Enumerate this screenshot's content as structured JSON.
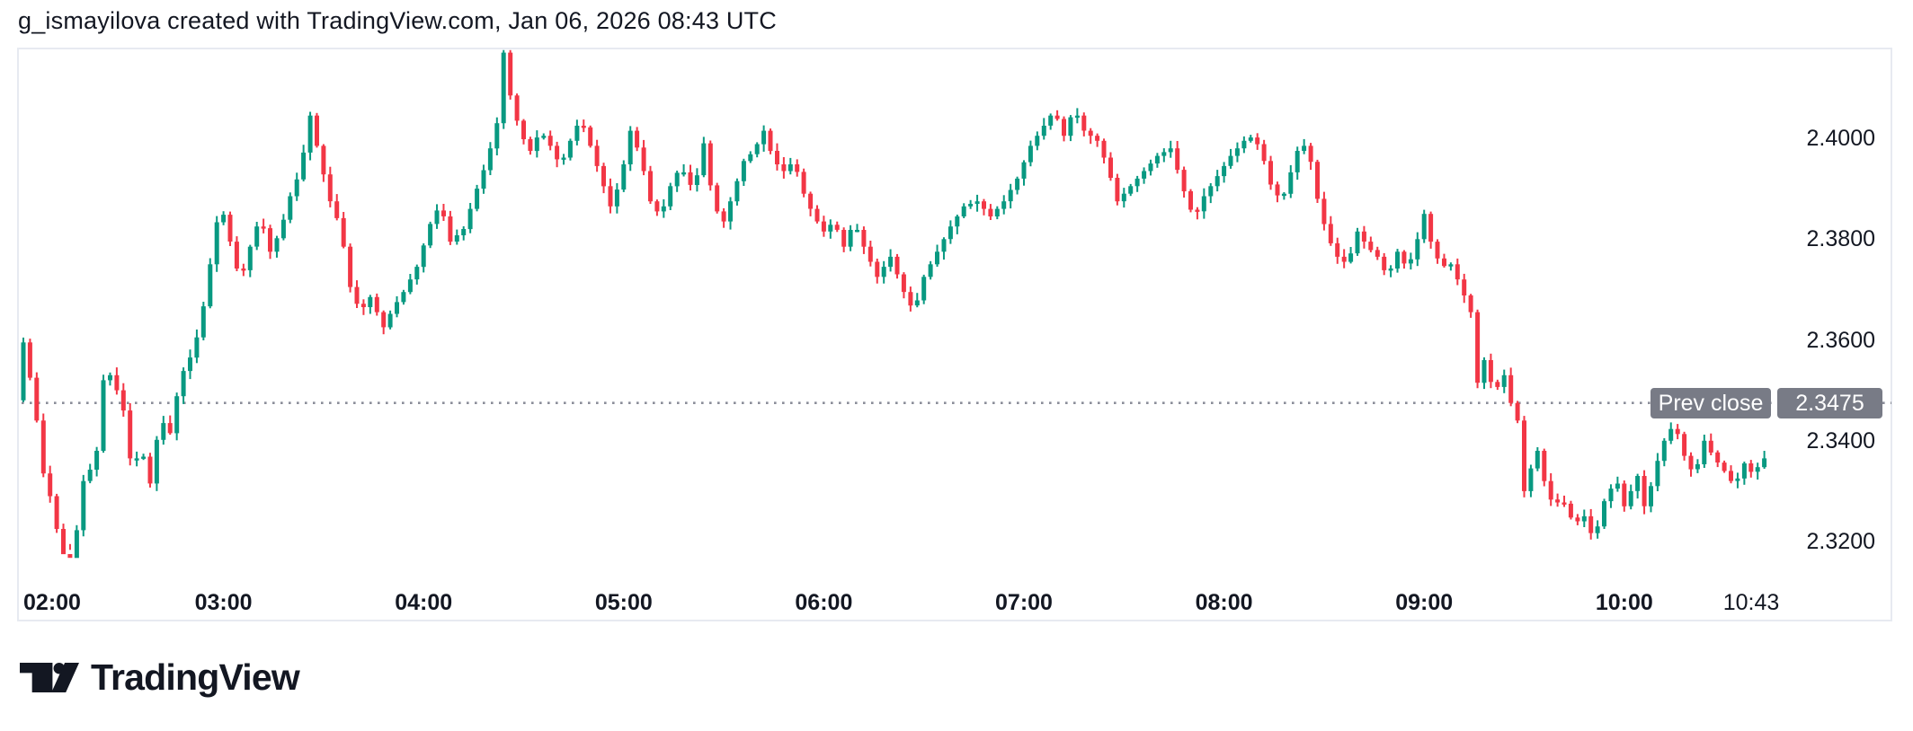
{
  "header": {
    "title": "g_ismayilova created with TradingView.com, Jan 06, 2026 08:43 UTC"
  },
  "colors": {
    "background": "#ffffff",
    "text": "#131722",
    "border": "#e7eaf1",
    "up": "#089981",
    "down": "#f23645",
    "dotted_line": "#8b8e99",
    "badge_bg": "#787b86",
    "badge_text": "#ffffff"
  },
  "prev_close": {
    "label": "Prev close",
    "value": "2.3475",
    "price": 2.3475
  },
  "y_axis": {
    "ticks": [
      {
        "label": "2.4000",
        "value": 2.4
      },
      {
        "label": "2.3800",
        "value": 2.38
      },
      {
        "label": "2.3600",
        "value": 2.36
      },
      {
        "label": "2.3400",
        "value": 2.34
      },
      {
        "label": "2.3200",
        "value": 2.32
      }
    ]
  },
  "x_axis": {
    "ticks": [
      {
        "label": "02:00",
        "emphasis": true
      },
      {
        "label": "03:00",
        "emphasis": true
      },
      {
        "label": "04:00",
        "emphasis": true
      },
      {
        "label": "05:00",
        "emphasis": true
      },
      {
        "label": "06:00",
        "emphasis": true
      },
      {
        "label": "07:00",
        "emphasis": true
      },
      {
        "label": "08:00",
        "emphasis": true
      },
      {
        "label": "09:00",
        "emphasis": true
      },
      {
        "label": "10:00",
        "emphasis": true
      },
      {
        "label": "10:43",
        "emphasis": false
      }
    ]
  },
  "logo": {
    "text": "TradingView"
  },
  "chart_data": {
    "type": "candlestick",
    "title": "g_ismayilova created with TradingView.com, Jan 06, 2026 08:43 UTC",
    "session_start": "02:00",
    "session_end": "10:43",
    "interval_minutes": 2,
    "candle_count": 262,
    "ylim": [
      2.303,
      2.418
    ],
    "visible_high": 2.4175,
    "visible_low": 2.3195,
    "prev_close": 2.3475,
    "legend_position": "none",
    "grid": "off",
    "anchors": [
      [
        "02:00",
        2.348
      ],
      [
        "02:02",
        2.3595
      ],
      [
        "02:04",
        2.3525
      ],
      [
        "02:06",
        2.344
      ],
      [
        "02:08",
        2.3335
      ],
      [
        "02:10",
        2.329
      ],
      [
        "02:12",
        2.3225
      ],
      [
        "02:15",
        2.315
      ],
      [
        "02:17",
        2.3185
      ],
      [
        "02:19",
        2.326
      ],
      [
        "02:21",
        2.338
      ],
      [
        "02:23",
        2.3305
      ],
      [
        "02:25",
        2.3455
      ],
      [
        "02:27",
        2.3585
      ],
      [
        "02:29",
        2.3475
      ],
      [
        "02:31",
        2.3525
      ],
      [
        "02:33",
        2.3395
      ],
      [
        "02:35",
        2.3335
      ],
      [
        "02:37",
        2.3395
      ],
      [
        "02:40",
        2.3315
      ],
      [
        "02:43",
        2.3445
      ],
      [
        "02:46",
        2.3415
      ],
      [
        "02:49",
        2.3525
      ],
      [
        "02:52",
        2.3565
      ],
      [
        "02:55",
        2.3625
      ],
      [
        "02:58",
        2.375
      ],
      [
        "03:01",
        2.3875
      ],
      [
        "03:04",
        2.3795
      ],
      [
        "03:07",
        2.3715
      ],
      [
        "03:10",
        2.3785
      ],
      [
        "03:13",
        2.3845
      ],
      [
        "03:16",
        2.3775
      ],
      [
        "03:19",
        2.3815
      ],
      [
        "03:22",
        2.3885
      ],
      [
        "03:25",
        2.3935
      ],
      [
        "03:28",
        2.4045
      ],
      [
        "03:31",
        2.3955
      ],
      [
        "03:34",
        2.3875
      ],
      [
        "03:37",
        2.3825
      ],
      [
        "03:40",
        2.3705
      ],
      [
        "03:43",
        2.3655
      ],
      [
        "03:46",
        2.3685
      ],
      [
        "03:50",
        2.3625
      ],
      [
        "03:53",
        2.3665
      ],
      [
        "03:56",
        2.3695
      ],
      [
        "04:00",
        2.3745
      ],
      [
        "04:04",
        2.383
      ],
      [
        "04:07",
        2.387
      ],
      [
        "04:10",
        2.3795
      ],
      [
        "04:14",
        2.382
      ],
      [
        "04:18",
        2.39
      ],
      [
        "04:21",
        2.3955
      ],
      [
        "04:24",
        2.403
      ],
      [
        "04:26",
        2.417
      ],
      [
        "04:28",
        2.4085
      ],
      [
        "04:31",
        2.401
      ],
      [
        "04:34",
        2.3975
      ],
      [
        "04:37",
        2.4015
      ],
      [
        "04:40",
        2.3985
      ],
      [
        "04:43",
        2.3945
      ],
      [
        "04:46",
        2.3995
      ],
      [
        "04:49",
        2.404
      ],
      [
        "04:52",
        2.3985
      ],
      [
        "04:55",
        2.3925
      ],
      [
        "04:58",
        2.3865
      ],
      [
        "05:01",
        2.3915
      ],
      [
        "05:04",
        2.4015
      ],
      [
        "05:07",
        2.3965
      ],
      [
        "05:10",
        2.3875
      ],
      [
        "05:13",
        2.3845
      ],
      [
        "05:16",
        2.3905
      ],
      [
        "05:19",
        2.3945
      ],
      [
        "05:23",
        2.3895
      ],
      [
        "05:26",
        2.399
      ],
      [
        "05:29",
        2.3865
      ],
      [
        "05:32",
        2.3835
      ],
      [
        "05:35",
        2.3895
      ],
      [
        "05:38",
        2.3955
      ],
      [
        "05:41",
        2.3975
      ],
      [
        "05:44",
        2.4015
      ],
      [
        "05:47",
        2.3955
      ],
      [
        "05:50",
        2.3935
      ],
      [
        "05:53",
        2.3955
      ],
      [
        "05:56",
        2.389
      ],
      [
        "05:59",
        2.3845
      ],
      [
        "06:02",
        2.3815
      ],
      [
        "06:05",
        2.3835
      ],
      [
        "06:08",
        2.3785
      ],
      [
        "06:11",
        2.3835
      ],
      [
        "06:14",
        2.3785
      ],
      [
        "06:18",
        2.3725
      ],
      [
        "06:22",
        2.3765
      ],
      [
        "06:26",
        2.3695
      ],
      [
        "06:29",
        2.3655
      ],
      [
        "06:32",
        2.3725
      ],
      [
        "06:36",
        2.3775
      ],
      [
        "06:40",
        2.3825
      ],
      [
        "06:44",
        2.3865
      ],
      [
        "06:48",
        2.3875
      ],
      [
        "06:52",
        2.3845
      ],
      [
        "06:56",
        2.3875
      ],
      [
        "07:00",
        2.392
      ],
      [
        "07:04",
        2.3985
      ],
      [
        "07:08",
        2.4025
      ],
      [
        "07:11",
        2.4055
      ],
      [
        "07:14",
        2.4005
      ],
      [
        "07:17",
        2.406
      ],
      [
        "07:20",
        2.4015
      ],
      [
        "07:24",
        2.3995
      ],
      [
        "07:27",
        2.3945
      ],
      [
        "07:30",
        2.3875
      ],
      [
        "07:34",
        2.3905
      ],
      [
        "07:38",
        2.3935
      ],
      [
        "07:42",
        2.3965
      ],
      [
        "07:46",
        2.398
      ],
      [
        "07:50",
        2.3895
      ],
      [
        "07:53",
        2.384
      ],
      [
        "07:56",
        2.3885
      ],
      [
        "08:00",
        2.3925
      ],
      [
        "08:04",
        2.3965
      ],
      [
        "08:08",
        2.3995
      ],
      [
        "08:11",
        2.4005
      ],
      [
        "08:14",
        2.3955
      ],
      [
        "08:17",
        2.3885
      ],
      [
        "08:20",
        2.389
      ],
      [
        "08:24",
        2.3975
      ],
      [
        "08:27",
        2.399
      ],
      [
        "08:30",
        2.388
      ],
      [
        "08:33",
        2.3805
      ],
      [
        "08:36",
        2.3765
      ],
      [
        "08:39",
        2.375
      ],
      [
        "08:42",
        2.3815
      ],
      [
        "08:45",
        2.3785
      ],
      [
        "08:48",
        2.3765
      ],
      [
        "08:51",
        2.3725
      ],
      [
        "08:54",
        2.3775
      ],
      [
        "08:57",
        2.374
      ],
      [
        "09:00",
        2.38
      ],
      [
        "09:02",
        2.385
      ],
      [
        "09:04",
        2.3795
      ],
      [
        "09:07",
        2.3745
      ],
      [
        "09:10",
        2.375
      ],
      [
        "09:13",
        2.3705
      ],
      [
        "09:16",
        2.3655
      ],
      [
        "09:18",
        2.3515
      ],
      [
        "09:20",
        2.356
      ],
      [
        "09:23",
        2.3495
      ],
      [
        "09:26",
        2.353
      ],
      [
        "09:28",
        2.3475
      ],
      [
        "09:30",
        2.344
      ],
      [
        "09:32",
        2.33
      ],
      [
        "09:34",
        2.3345
      ],
      [
        "09:36",
        2.338
      ],
      [
        "09:38",
        2.332
      ],
      [
        "09:41",
        2.3265
      ],
      [
        "09:43",
        2.329
      ],
      [
        "09:45",
        2.326
      ],
      [
        "09:47",
        2.3235
      ],
      [
        "09:50",
        2.325
      ],
      [
        "09:53",
        2.32
      ],
      [
        "09:55",
        2.326
      ],
      [
        "09:57",
        2.33
      ],
      [
        "10:00",
        2.3315
      ],
      [
        "10:02",
        2.327
      ],
      [
        "10:04",
        2.33
      ],
      [
        "10:06",
        2.333
      ],
      [
        "10:08",
        2.327
      ],
      [
        "10:10",
        2.331
      ],
      [
        "10:12",
        2.336
      ],
      [
        "10:14",
        2.34
      ],
      [
        "10:17",
        2.3435
      ],
      [
        "10:20",
        2.337
      ],
      [
        "10:23",
        2.333
      ],
      [
        "10:26",
        2.34
      ],
      [
        "10:29",
        2.3365
      ],
      [
        "10:32",
        2.334
      ],
      [
        "10:35",
        2.331
      ],
      [
        "10:38",
        2.3355
      ],
      [
        "10:41",
        2.333
      ],
      [
        "10:43",
        2.3365
      ]
    ]
  }
}
